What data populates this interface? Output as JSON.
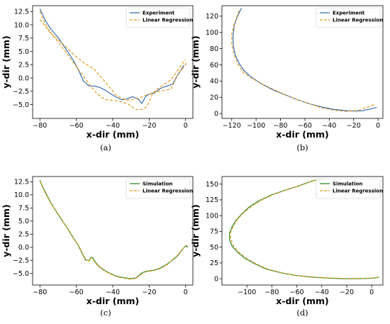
{
  "colors": {
    "experiment": "#3a6fb0",
    "simulation": "#2e8b2e",
    "regression": "#e39a1c"
  },
  "chart_data": [
    {
      "type": "line",
      "caption": "(a)",
      "xlabel": "x-dir (mm)",
      "ylabel": "y-dir (mm)",
      "xlim": [
        -84,
        4
      ],
      "ylim": [
        -7.6,
        13.6
      ],
      "xticks": [
        -80,
        -60,
        -40,
        -20,
        0
      ],
      "yticks": [
        -5.0,
        -2.5,
        0.0,
        2.5,
        5.0,
        7.5,
        10.0,
        12.5
      ],
      "ytick_labels": [
        "−5.0",
        "−2.5",
        "0.0",
        "2.5",
        "5.0",
        "7.5",
        "10.0",
        "12.5"
      ],
      "xtick_labels": [
        "−80",
        "−60",
        "−40",
        "−20",
        "0"
      ],
      "legend": "top-right",
      "series": [
        {
          "name": "Experiment",
          "style": "solid",
          "color_key": "experiment",
          "x": [
            -80,
            -77,
            -74,
            -70,
            -66,
            -62,
            -59,
            -56,
            -53,
            -50,
            -47,
            -44,
            -41,
            -38,
            -35,
            -32,
            -29,
            -26,
            -24,
            -22,
            -20,
            -17,
            -14,
            -11,
            -9,
            -7,
            -5,
            -3,
            -1
          ],
          "y": [
            13,
            10.8,
            9.2,
            7.6,
            5.6,
            3.5,
            1.6,
            -0.6,
            -1.5,
            -1.5,
            -1.8,
            -2.3,
            -3.0,
            -3.6,
            -4.1,
            -3.9,
            -3.5,
            -4.0,
            -4.8,
            -3.5,
            -3.0,
            -2.8,
            -2.0,
            -1.6,
            -1.4,
            -1.1,
            0.2,
            1.2,
            2.4
          ]
        },
        {
          "name": "Linear Regression",
          "style": "dashed",
          "color_key": "regression",
          "x": [
            -80,
            -78,
            -76,
            -73,
            -70,
            -67,
            -64,
            -61,
            -58,
            -55,
            -52,
            -49,
            -46,
            -43,
            -40,
            -37,
            -34,
            -31,
            -28,
            -26,
            -24,
            -22,
            -20,
            -18,
            -16,
            -14,
            -12,
            -10,
            -8,
            -6,
            -4,
            -2,
            0
          ],
          "y": [
            12.5,
            10.9,
            9.5,
            8.0,
            6.8,
            5.4,
            4.0,
            2.6,
            1.2,
            -0.2,
            -1.6,
            -2.8,
            -3.7,
            -4.1,
            -4.2,
            -4.3,
            -4.6,
            -5.0,
            -5.8,
            -6.0,
            -5.9,
            -5.6,
            -4.5,
            -2.8,
            -2.2,
            -1.7,
            -1.3,
            -0.8,
            -0.3,
            0.6,
            1.6,
            2.6,
            3.5
          ]
        },
        {
          "name": "",
          "style": "dashed",
          "color_key": "regression",
          "x": [
            -80,
            -74,
            -68,
            -62,
            -56,
            -50,
            -44,
            -38,
            -32,
            -26,
            -20,
            -16,
            -12,
            -8,
            -4,
            -1,
            1
          ],
          "y": [
            11.0,
            8.4,
            6.6,
            4.6,
            2.9,
            1.6,
            -0.8,
            -3.3,
            -4.2,
            -3.8,
            -3.0,
            -2.6,
            -2.3,
            -2.1,
            0.9,
            2.0,
            3.1
          ]
        }
      ]
    },
    {
      "type": "line",
      "caption": "(b)",
      "xlabel": "x-dir (mm)",
      "ylabel": "y-dir (mm)",
      "xlim": [
        -128,
        4
      ],
      "ylim": [
        -6,
        133
      ],
      "xticks": [
        -120,
        -100,
        -80,
        -60,
        -40,
        -20,
        0
      ],
      "yticks": [
        0,
        20,
        40,
        60,
        80,
        100,
        120
      ],
      "ytick_labels": [
        "0",
        "20",
        "40",
        "60",
        "80",
        "100",
        "120"
      ],
      "xtick_labels": [
        "−120",
        "−100",
        "−80",
        "−60",
        "−40",
        "−20",
        "0"
      ],
      "legend": "top-right",
      "series": [
        {
          "name": "Experiment",
          "style": "solid",
          "color_key": "experiment",
          "x": [
            -112,
            -114,
            -116,
            -118,
            -119,
            -118.5,
            -117,
            -114,
            -110,
            -104,
            -96,
            -86,
            -76,
            -66,
            -56,
            -46,
            -36,
            -26,
            -18,
            -12,
            -8,
            -4,
            -1
          ],
          "y": [
            130,
            124,
            117,
            108,
            94,
            82,
            72,
            62,
            53,
            45,
            37,
            29,
            23,
            17,
            12,
            8,
            5,
            3.5,
            3,
            3.5,
            5,
            6.5,
            7.5
          ]
        },
        {
          "name": "Linear Regression",
          "style": "dashed",
          "color_key": "regression",
          "x": [
            -114,
            -116,
            -118,
            -120,
            -120,
            -119,
            -117,
            -114,
            -110,
            -104,
            -96,
            -86,
            -76,
            -66,
            -56,
            -46,
            -36,
            -26,
            -16,
            -8,
            -2
          ],
          "y": [
            127,
            118,
            110,
            98,
            86,
            78,
            68,
            58,
            50,
            44,
            37,
            30,
            23,
            17,
            12,
            7,
            4,
            2.5,
            4,
            8,
            12
          ]
        }
      ]
    },
    {
      "type": "line",
      "caption": "(c)",
      "xlabel": "x-dir (mm)",
      "ylabel": "y-dir (mm)",
      "xlim": [
        -84,
        4
      ],
      "ylim": [
        -7.2,
        13.5
      ],
      "xticks": [
        -80,
        -60,
        -40,
        -20,
        0
      ],
      "yticks": [
        -5.0,
        -2.5,
        0.0,
        2.5,
        5.0,
        7.5,
        10.0,
        12.5
      ],
      "ytick_labels": [
        "−5.0",
        "−2.5",
        "0.0",
        "2.5",
        "5.0",
        "7.5",
        "10.0",
        "12.5"
      ],
      "xtick_labels": [
        "−80",
        "−60",
        "−40",
        "−20",
        "0"
      ],
      "legend": "top-right",
      "series": [
        {
          "name": "Simulation",
          "style": "solid",
          "color_key": "simulation",
          "x": [
            -80,
            -79,
            -77,
            -74,
            -71,
            -68,
            -65,
            -62,
            -59,
            -57,
            -55,
            -53,
            -52,
            -51,
            -50,
            -48,
            -45,
            -42,
            -38,
            -34,
            -30,
            -27,
            -25,
            -24,
            -22,
            -18,
            -14,
            -10,
            -7,
            -4,
            -2,
            0,
            1,
            0.5
          ],
          "y": [
            12.8,
            11.9,
            10.5,
            8.5,
            6.8,
            5.2,
            3.7,
            2.0,
            0.4,
            -1.0,
            -2.4,
            -2.6,
            -1.9,
            -2.0,
            -2.6,
            -3.5,
            -4.3,
            -4.9,
            -5.5,
            -5.8,
            -6.0,
            -5.8,
            -5.2,
            -4.9,
            -4.6,
            -4.4,
            -4.0,
            -3.2,
            -2.4,
            -1.5,
            -0.5,
            0.3,
            0.1,
            0.0
          ]
        },
        {
          "name": "Linear Regression",
          "style": "dashed",
          "color_key": "regression",
          "x": [
            -80,
            -79,
            -77,
            -74,
            -71,
            -68,
            -65,
            -62,
            -59,
            -57,
            -55,
            -53,
            -52,
            -51,
            -50,
            -48,
            -45,
            -42,
            -38,
            -34,
            -30,
            -27,
            -25,
            -24,
            -22,
            -18,
            -14,
            -10,
            -7,
            -4,
            -2,
            0,
            1
          ],
          "y": [
            12.6,
            11.8,
            10.3,
            8.4,
            6.9,
            5.3,
            3.6,
            1.9,
            0.5,
            -0.9,
            -2.2,
            -2.7,
            -2.0,
            -2.2,
            -2.8,
            -3.6,
            -4.4,
            -5.0,
            -5.6,
            -5.9,
            -6.1,
            -5.9,
            -5.3,
            -5.1,
            -4.7,
            -4.5,
            -4.1,
            -3.3,
            -2.3,
            -1.4,
            -0.4,
            0.2,
            0.4
          ]
        }
      ]
    },
    {
      "type": "line",
      "caption": "(d)",
      "xlabel": "x-dir (mm)",
      "ylabel": "y-dir (mm)",
      "xlim": [
        -120,
        9
      ],
      "ylim": [
        -10,
        162
      ],
      "xticks": [
        -100,
        -80,
        -60,
        -40,
        -20,
        0
      ],
      "yticks": [
        0,
        25,
        50,
        75,
        100,
        125,
        150
      ],
      "ytick_labels": [
        "0",
        "25",
        "50",
        "75",
        "100",
        "125",
        "150"
      ],
      "xtick_labels": [
        "−100",
        "−80",
        "−60",
        "−40",
        "−20",
        "0"
      ],
      "legend": "top-right",
      "series": [
        {
          "name": "Simulation",
          "style": "solid",
          "color_key": "simulation",
          "x": [
            -40,
            -46,
            -52,
            -60,
            -70,
            -80,
            -90,
            -98,
            -104,
            -109,
            -112,
            -114,
            -114,
            -112,
            -108,
            -102,
            -94,
            -84,
            -72,
            -60,
            -48,
            -36,
            -24,
            -12,
            -2,
            4,
            6
          ],
          "y": [
            157,
            156,
            152,
            146,
            140,
            133,
            124,
            114,
            103,
            92,
            82,
            72,
            62,
            52,
            43,
            33,
            24,
            15,
            9,
            5,
            2.5,
            1,
            0,
            0,
            0.5,
            1.5,
            2.5
          ]
        },
        {
          "name": "Linear Regression",
          "style": "dashed",
          "color_key": "regression",
          "x": [
            -38,
            -44,
            -50,
            -58,
            -68,
            -78,
            -88,
            -96,
            -103,
            -108,
            -111,
            -113,
            -113,
            -111,
            -107,
            -101,
            -93,
            -83,
            -71,
            -59,
            -47,
            -35,
            -23,
            -11,
            -1,
            5
          ],
          "y": [
            158,
            157,
            153,
            147,
            141,
            134,
            125,
            115,
            104,
            93,
            83,
            73,
            63,
            53,
            43,
            33,
            24,
            15,
            9,
            5,
            2.8,
            1.3,
            0.4,
            0.3,
            0.9,
            2.2
          ]
        }
      ]
    }
  ]
}
